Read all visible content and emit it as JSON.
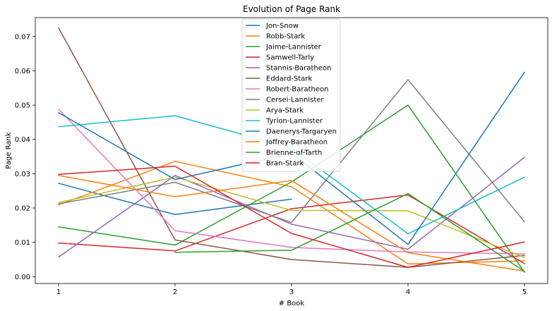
{
  "chart_data": {
    "type": "line",
    "title": "Evolution of Page Rank",
    "xlabel": "# Book",
    "ylabel": "Page Rank",
    "x": [
      1,
      2,
      3,
      4,
      5
    ],
    "xticks": [
      "1",
      "2",
      "3",
      "4",
      "5"
    ],
    "yticks": [
      "0.00",
      "0.01",
      "0.02",
      "0.03",
      "0.04",
      "0.05",
      "0.06",
      "0.07"
    ],
    "xlim": [
      0.8,
      5.2
    ],
    "ylim": [
      -0.002,
      0.0755
    ],
    "grid": false,
    "legend_position": "top-center",
    "series": [
      {
        "name": "Jon-Snow",
        "color": "#1f77b4",
        "values": [
          0.0272,
          0.0181,
          0.0226,
          null,
          null
        ]
      },
      {
        "name": "Robb-Stark",
        "color": "#ff7f0e",
        "values": [
          0.0209,
          0.0336,
          0.0262,
          0.0037,
          0.0046
        ]
      },
      {
        "name": "Jaime-Lannister",
        "color": "#2ca02c",
        "values": [
          0.0145,
          0.0092,
          0.0276,
          0.05,
          0.0013
        ]
      },
      {
        "name": "Samwell-Tarly",
        "color": "#d62728",
        "values": [
          0.0098,
          0.0075,
          0.0198,
          0.0238,
          0.0038
        ]
      },
      {
        "name": "Stannis-Baratheon",
        "color": "#9467bd",
        "values": [
          0.0057,
          0.0295,
          0.0153,
          0.008,
          0.0348
        ]
      },
      {
        "name": "Eddard-Stark",
        "color": "#8c564b",
        "values": [
          0.0725,
          0.0107,
          0.005,
          0.0027,
          0.0062
        ]
      },
      {
        "name": "Robert-Baratheon",
        "color": "#e377c2",
        "values": [
          0.0488,
          0.0134,
          0.0085,
          0.0072,
          0.0066
        ]
      },
      {
        "name": "Cersei-Lannister",
        "color": "#7f7f7f",
        "values": [
          0.0212,
          0.0275,
          0.0158,
          0.0574,
          0.016
        ]
      },
      {
        "name": "Arya-Stark",
        "color": "#bcbd22",
        "values": [
          0.0216,
          0.029,
          0.0193,
          0.0192,
          0.0056
        ]
      },
      {
        "name": "Tyrion-Lannister",
        "color": "#17becf",
        "values": [
          0.0437,
          0.0469,
          0.0375,
          0.0125,
          0.029
        ]
      },
      {
        "name": "Daenerys-Targaryen",
        "color": "#1f77b4",
        "values": [
          0.0478,
          0.0283,
          0.036,
          0.0094,
          0.0596
        ]
      },
      {
        "name": "Joffrey-Baratheon",
        "color": "#ff7f0e",
        "values": [
          0.0295,
          0.0233,
          0.028,
          0.007,
          0.0016
        ]
      },
      {
        "name": "Brienne-of-Tarth",
        "color": "#2ca02c",
        "values": [
          null,
          0.0071,
          0.0077,
          0.0242,
          0.0015
        ]
      },
      {
        "name": "Bran-Stark",
        "color": "#d62728",
        "values": [
          0.0298,
          0.0322,
          0.0126,
          0.0027,
          0.0101
        ]
      }
    ]
  }
}
